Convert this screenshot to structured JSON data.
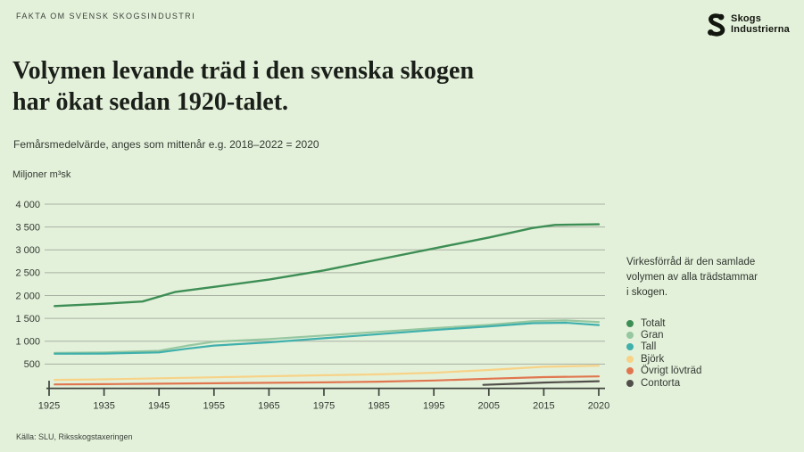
{
  "page": {
    "eyebrow": "FAKTA OM SVENSK SKOGSINDUSTRI",
    "title_line1": "Volymen levande träd i den svenska skogen",
    "title_line2": "har ökat sedan 1920-talet.",
    "subtitle": "Femårsmedelvärde, anges som mittenår e.g. 2018–2022 = 2020",
    "source": "Källa: SLU, Riksskogstaxeringen"
  },
  "logo": {
    "icon": "skogsindustrierna-s-icon",
    "line1": "Skogs",
    "line2": "Industrierna"
  },
  "note": "Virkesförråd är den samlade volymen av alla trädstammar i skogen.",
  "colors": {
    "background": "#e4f1da",
    "grid": "#a8b0a2",
    "axis": "#3f453f",
    "title_text": "#1b1f1a",
    "body_text": "#333a33"
  },
  "chart_data": {
    "type": "line",
    "title": "Volymen levande träd i den svenska skogen har ökat sedan 1920-talet.",
    "subtitle": "Femårsmedelvärde, anges som mittenår e.g. 2018–2022 = 2020",
    "ylabel": "Miljoner m³sk",
    "xlabel": "",
    "ylim": [
      0,
      4000
    ],
    "grid": true,
    "legend_position": "right",
    "x_axis_note": "evenly spaced ticks; final 2015 to 2020 step drawn at full decade width",
    "y_ticks": [
      {
        "value": 500,
        "label": "500"
      },
      {
        "value": 1000,
        "label": "1 000"
      },
      {
        "value": 1500,
        "label": "1 500"
      },
      {
        "value": 2000,
        "label": "2 000"
      },
      {
        "value": 2500,
        "label": "2 500"
      },
      {
        "value": 3000,
        "label": "3 000"
      },
      {
        "value": 3500,
        "label": "3 500"
      },
      {
        "value": 4000,
        "label": "4 000"
      }
    ],
    "x_ticks": [
      {
        "year": 1925,
        "label": "1925"
      },
      {
        "year": 1935,
        "label": "1935"
      },
      {
        "year": 1945,
        "label": "1945"
      },
      {
        "year": 1955,
        "label": "1955"
      },
      {
        "year": 1965,
        "label": "1965"
      },
      {
        "year": 1975,
        "label": "1975"
      },
      {
        "year": 1985,
        "label": "1985"
      },
      {
        "year": 1995,
        "label": "1995"
      },
      {
        "year": 2005,
        "label": "2005"
      },
      {
        "year": 2015,
        "label": "2015"
      },
      {
        "year": 2020,
        "label": "2020"
      }
    ],
    "series": [
      {
        "name": "Totalt",
        "color": "#3d8e55",
        "points": [
          [
            1926,
            1770
          ],
          [
            1935,
            1820
          ],
          [
            1942,
            1870
          ],
          [
            1948,
            2080
          ],
          [
            1955,
            2190
          ],
          [
            1965,
            2350
          ],
          [
            1975,
            2550
          ],
          [
            1985,
            2790
          ],
          [
            1995,
            3030
          ],
          [
            2005,
            3270
          ],
          [
            2013,
            3480
          ],
          [
            2016,
            3545
          ],
          [
            2020,
            3560
          ]
        ]
      },
      {
        "name": "Gran",
        "color": "#96c7a0",
        "points": [
          [
            1926,
            745
          ],
          [
            1935,
            755
          ],
          [
            1945,
            790
          ],
          [
            1950,
            900
          ],
          [
            1955,
            990
          ],
          [
            1965,
            1045
          ],
          [
            1975,
            1125
          ],
          [
            1985,
            1205
          ],
          [
            1995,
            1285
          ],
          [
            2005,
            1360
          ],
          [
            2013,
            1440
          ],
          [
            2017,
            1455
          ],
          [
            2020,
            1420
          ]
        ]
      },
      {
        "name": "Tall",
        "color": "#3fb0ac",
        "points": [
          [
            1926,
            725
          ],
          [
            1935,
            730
          ],
          [
            1945,
            755
          ],
          [
            1950,
            835
          ],
          [
            1955,
            905
          ],
          [
            1965,
            975
          ],
          [
            1975,
            1065
          ],
          [
            1985,
            1155
          ],
          [
            1995,
            1245
          ],
          [
            2005,
            1325
          ],
          [
            2013,
            1395
          ],
          [
            2017,
            1405
          ],
          [
            2020,
            1355
          ]
        ]
      },
      {
        "name": "Björk",
        "color": "#f7d287",
        "points": [
          [
            1926,
            155
          ],
          [
            1935,
            165
          ],
          [
            1945,
            190
          ],
          [
            1955,
            210
          ],
          [
            1965,
            235
          ],
          [
            1975,
            255
          ],
          [
            1985,
            275
          ],
          [
            1995,
            310
          ],
          [
            2005,
            370
          ],
          [
            2015,
            440
          ],
          [
            2020,
            465
          ]
        ]
      },
      {
        "name": "Övrigt lövträd",
        "color": "#e0764f",
        "points": [
          [
            1926,
            55
          ],
          [
            1935,
            60
          ],
          [
            1945,
            70
          ],
          [
            1955,
            80
          ],
          [
            1965,
            90
          ],
          [
            1975,
            100
          ],
          [
            1985,
            115
          ],
          [
            1995,
            140
          ],
          [
            2005,
            180
          ],
          [
            2015,
            215
          ],
          [
            2020,
            230
          ]
        ]
      },
      {
        "name": "Contorta",
        "color": "#514f4a",
        "points": [
          [
            2004,
            45
          ],
          [
            2010,
            70
          ],
          [
            2015,
            95
          ],
          [
            2020,
            125
          ]
        ]
      }
    ]
  }
}
